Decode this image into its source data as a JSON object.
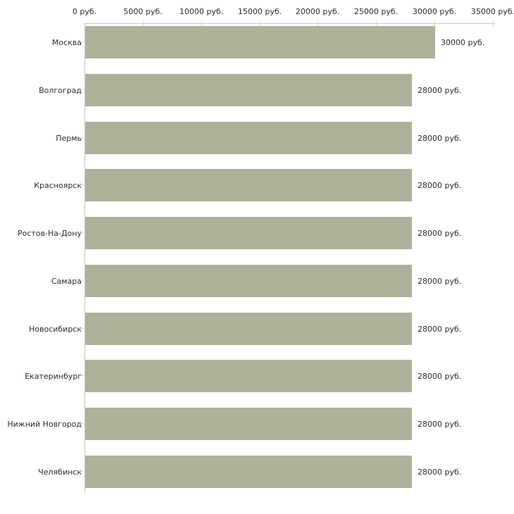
{
  "chart_data": {
    "type": "bar",
    "orientation": "horizontal",
    "title": "",
    "xlabel": "",
    "ylabel": "",
    "unit": "руб.",
    "xlim": [
      0,
      35000
    ],
    "x_tick_step": 5000,
    "x_tick_labels": [
      "0 руб.",
      "5000 руб.",
      "10000 руб.",
      "15000 руб.",
      "20000 руб.",
      "25000 руб.",
      "30000 руб.",
      "35000 руб."
    ],
    "categories": [
      "Москва",
      "Волгоград",
      "Пермь",
      "Красноярск",
      "Ростов-На-Дону",
      "Самара",
      "Новосибирск",
      "Екатеринбург",
      "Нижний Новгород",
      "Челябинск"
    ],
    "values": [
      30000,
      28000,
      28000,
      28000,
      28000,
      28000,
      28000,
      28000,
      28000,
      28000
    ],
    "value_labels": [
      "30000 руб.",
      "28000 руб.",
      "28000 руб.",
      "28000 руб.",
      "28000 руб.",
      "28000 руб.",
      "28000 руб.",
      "28000 руб.",
      "28000 руб.",
      "28000 руб."
    ],
    "grid": false,
    "legend": "none",
    "colors": {
      "bar": "#abb299",
      "axis": "#c6c6c6",
      "tick": "#d9d9b5",
      "text": "#2b2b2b",
      "background": "#ffffff"
    }
  }
}
